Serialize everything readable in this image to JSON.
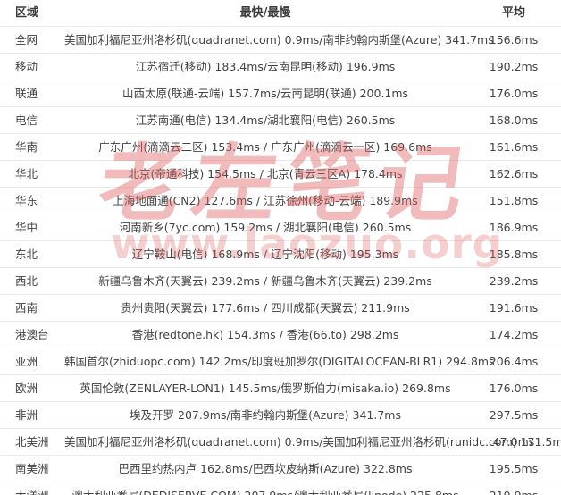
{
  "watermark": {
    "title": "老左笔记",
    "url": "www.laozuo.org",
    "color": "#e06060"
  },
  "table": {
    "columns": [
      {
        "id": "region",
        "label": "区域"
      },
      {
        "id": "fastest_slowest",
        "label": "最快/最慢"
      },
      {
        "id": "average",
        "label": "平均"
      }
    ],
    "rows": [
      {
        "region": "全网",
        "fastest_slowest": "美国加利福尼亚州洛杉矶(quadranet.com) 0.9ms/南非约翰内斯堡(Azure) 341.7ms",
        "average": "156.6ms"
      },
      {
        "region": "移动",
        "fastest_slowest": "江苏宿迁(移动) 183.4ms/云南昆明(移动) 196.9ms",
        "average": "190.2ms"
      },
      {
        "region": "联通",
        "fastest_slowest": "山西太原(联通-云端) 157.7ms/云南昆明(联通) 200.1ms",
        "average": "176.0ms"
      },
      {
        "region": "电信",
        "fastest_slowest": "江苏南通(电信) 134.4ms/湖北襄阳(电信) 260.5ms",
        "average": "168.0ms"
      },
      {
        "region": "华南",
        "fastest_slowest": "广东广州(滴滴云二区) 153.4ms / 广东广州(滴滴云一区) 169.6ms",
        "average": "161.6ms"
      },
      {
        "region": "华北",
        "fastest_slowest": "北京(帝通科技) 154.5ms / 北京(青云三区A) 178.4ms",
        "average": "162.6ms"
      },
      {
        "region": "华东",
        "fastest_slowest": "上海地面通(CN2) 127.6ms / 江苏徐州(移动-云端) 189.9ms",
        "average": "151.8ms"
      },
      {
        "region": "华中",
        "fastest_slowest": "河南新乡(7yc.com) 159.2ms / 湖北襄阳(电信) 260.5ms",
        "average": "186.9ms"
      },
      {
        "region": "东北",
        "fastest_slowest": "辽宁鞍山(电信) 168.9ms / 辽宁沈阳(移动) 195.3ms",
        "average": "185.8ms"
      },
      {
        "region": "西北",
        "fastest_slowest": "新疆乌鲁木齐(天翼云) 239.2ms / 新疆乌鲁木齐(天翼云) 239.2ms",
        "average": "239.2ms"
      },
      {
        "region": "西南",
        "fastest_slowest": "贵州贵阳(天翼云) 177.6ms / 四川成都(天翼云) 211.9ms",
        "average": "191.6ms"
      },
      {
        "region": "港澳台",
        "fastest_slowest": "香港(redtone.hk) 154.3ms / 香港(66.to) 298.2ms",
        "average": "174.2ms"
      },
      {
        "region": "亚洲",
        "fastest_slowest": "韩国首尔(zhiduopc.com) 142.2ms/印度班加罗尔(DIGITALOCEAN-BLR1) 294.8ms",
        "average": "206.4ms"
      },
      {
        "region": "欧洲",
        "fastest_slowest": "英国伦敦(ZENLAYER-LON1) 145.5ms/俄罗斯伯力(misaka.io) 269.8ms",
        "average": "176.0ms"
      },
      {
        "region": "非洲",
        "fastest_slowest": "埃及开罗 207.9ms/南非约翰内斯堡(Azure) 341.7ms",
        "average": "297.5ms"
      },
      {
        "region": "北美洲",
        "fastest_slowest": "美国加利福尼亚州洛杉矶(quadranet.com) 0.9ms/美国加利福尼亚州洛杉矶(runidc.com) 171.5ms",
        "average": "47.0ms"
      },
      {
        "region": "南美洲",
        "fastest_slowest": "巴西里约热内卢 162.8ms/巴西坎皮纳斯(Azure) 322.8ms",
        "average": "195.5ms"
      },
      {
        "region": "大洋洲",
        "fastest_slowest": "澳大利亚悉尼(DEDISERVE.COM) 207.9ms/澳大利亚悉尼(linode) 225.8ms",
        "average": "219.9ms"
      }
    ]
  }
}
